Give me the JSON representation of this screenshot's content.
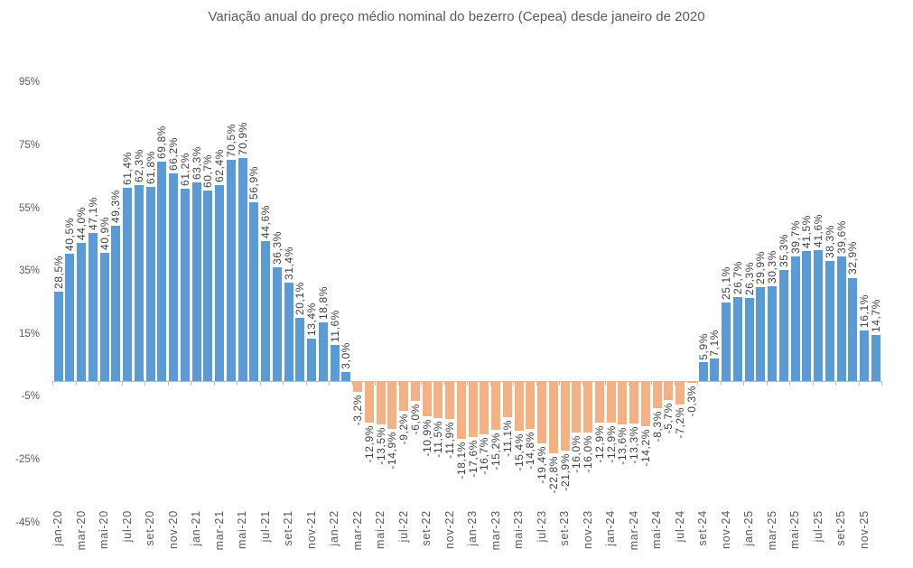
{
  "title": "Variação anual do preço médio nominal do bezerro (Cepea) desde janeiro de 2020",
  "colors": {
    "positive_bar": "#5B9BD5",
    "negative_bar": "#F4B183",
    "axis_line": "#BFBFBF",
    "axis_text": "#595959",
    "data_label_text": "#404040",
    "title_text": "#595959",
    "background": "#FFFFFF"
  },
  "chart_data": {
    "type": "bar",
    "title": "Variação anual do preço médio nominal do bezerro (Cepea) desde janeiro de 2020",
    "xlabel": "",
    "ylabel": "",
    "ylim": [
      -45,
      95
    ],
    "y_tick_step": 20,
    "grid": false,
    "legend": false,
    "value_label_rotation_deg": 90,
    "x_label_rotation_deg": 90,
    "categories": [
      "jan-20",
      "fev-20",
      "mar-20",
      "abr-20",
      "mai-20",
      "jun-20",
      "jul-20",
      "ago-20",
      "set-20",
      "out-20",
      "nov-20",
      "dez-20",
      "jan-21",
      "fev-21",
      "mar-21",
      "abr-21",
      "mai-21",
      "jun-21",
      "jul-21",
      "ago-21",
      "set-21",
      "out-21",
      "nov-21",
      "dez-21",
      "jan-22",
      "fev-22",
      "mar-22",
      "abr-22",
      "mai-22",
      "jun-22",
      "jul-22",
      "ago-22",
      "set-22",
      "out-22",
      "nov-22",
      "dez-22",
      "jan-23",
      "fev-23",
      "mar-23",
      "abr-23",
      "mai-23",
      "jun-23",
      "jul-23",
      "ago-23",
      "set-23",
      "out-23",
      "nov-23",
      "dez-23",
      "jan-24",
      "fev-24",
      "mar-24",
      "abr-24",
      "mai-24",
      "jun-24",
      "jul-24",
      "ago-24",
      "set-24",
      "out-24",
      "nov-24",
      "dez-24",
      "jan-25",
      "fev-25",
      "mar-25",
      "abr-25",
      "mai-25",
      "jun-25",
      "jul-25",
      "ago-25",
      "set-25",
      "out-25",
      "nov-25",
      "dez-25"
    ],
    "values": [
      28.5,
      40.5,
      44.0,
      47.1,
      40.9,
      49.3,
      61.4,
      62.3,
      61.8,
      69.8,
      66.2,
      61.2,
      63.3,
      60.7,
      62.4,
      70.5,
      70.9,
      56.9,
      44.6,
      36.3,
      31.4,
      20.1,
      13.4,
      18.8,
      11.6,
      3.0,
      -3.2,
      -12.9,
      -13.5,
      -14.9,
      -9.2,
      -6.0,
      -10.9,
      -11.5,
      -11.9,
      -18.1,
      -17.6,
      -16.7,
      -15.2,
      -11.1,
      -15.4,
      -14.8,
      -19.4,
      -22.8,
      -21.9,
      -16.0,
      -16.0,
      -12.9,
      -12.9,
      -13.6,
      -13.3,
      -14.2,
      -8.3,
      -5.7,
      -7.2,
      -0.3,
      5.9,
      7.1,
      25.1,
      26.7,
      26.3,
      29.9,
      30.3,
      35.3,
      39.7,
      41.5,
      41.6,
      38.3,
      39.6,
      32.9,
      16.1,
      14.7
    ],
    "value_labels": [
      "28,5%",
      "40,5%",
      "44,0%",
      "47,1%",
      "40,9%",
      "49,3%",
      "61,4%",
      "62,3%",
      "61,8%",
      "69,8%",
      "66,2%",
      "61,2%",
      "63,3%",
      "60,7%",
      "62,4%",
      "70,5%",
      "70,9%",
      "56,9%",
      "44,6%",
      "36,3%",
      "31,4%",
      "20,1%",
      "13,4%",
      "18,8%",
      "11,6%",
      "3,0%",
      "-3,2%",
      "-12,9%",
      "-13,5%",
      "-14,9%",
      "-9,2%",
      "-6,0%",
      "-10,9%",
      "-11,5%",
      "-11,9%",
      "-18,1%",
      "-17,6%",
      "-16,7%",
      "-15,2%",
      "-11,1%",
      "-15,4%",
      "-14,8%",
      "-19,4%",
      "-22,8%",
      "-21,9%",
      "-16,0%",
      "-16,0%",
      "-12,9%",
      "-12,9%",
      "-13,6%",
      "-13,3%",
      "-14,2%",
      "-8,3%",
      "-5,7%",
      "-7,2%",
      "-0,3%",
      "5,9%",
      "7,1%",
      "25,1%",
      "26,7%",
      "26,3%",
      "29,9%",
      "30,3%",
      "35,3%",
      "39,7%",
      "41,5%",
      "41,6%",
      "38,3%",
      "39,6%",
      "32,9%",
      "16,1%",
      "14,7%"
    ],
    "x_tick_labels": [
      "jan-20",
      "mar-20",
      "mai-20",
      "jul-20",
      "set-20",
      "nov-20",
      "jan-21",
      "mar-21",
      "mai-21",
      "jul-21",
      "set-21",
      "nov-21",
      "jan-22",
      "mar-22",
      "mai-22",
      "jul-22",
      "set-22",
      "nov-22",
      "jan-23",
      "mar-23",
      "mai-23",
      "jul-23",
      "set-23",
      "nov-23",
      "jan-24",
      "mar-24",
      "mai-24",
      "jul-24",
      "set-24",
      "nov-24",
      "jan-25",
      "mar-25",
      "mai-25",
      "jul-25",
      "set-25",
      "nov-25"
    ],
    "y_tick_values": [
      95,
      75,
      55,
      35,
      15,
      -5,
      -25,
      -45
    ],
    "y_tick_labels": [
      "95%",
      "75%",
      "55%",
      "35%",
      "15%",
      "-5%",
      "-25%",
      "-45%"
    ]
  }
}
